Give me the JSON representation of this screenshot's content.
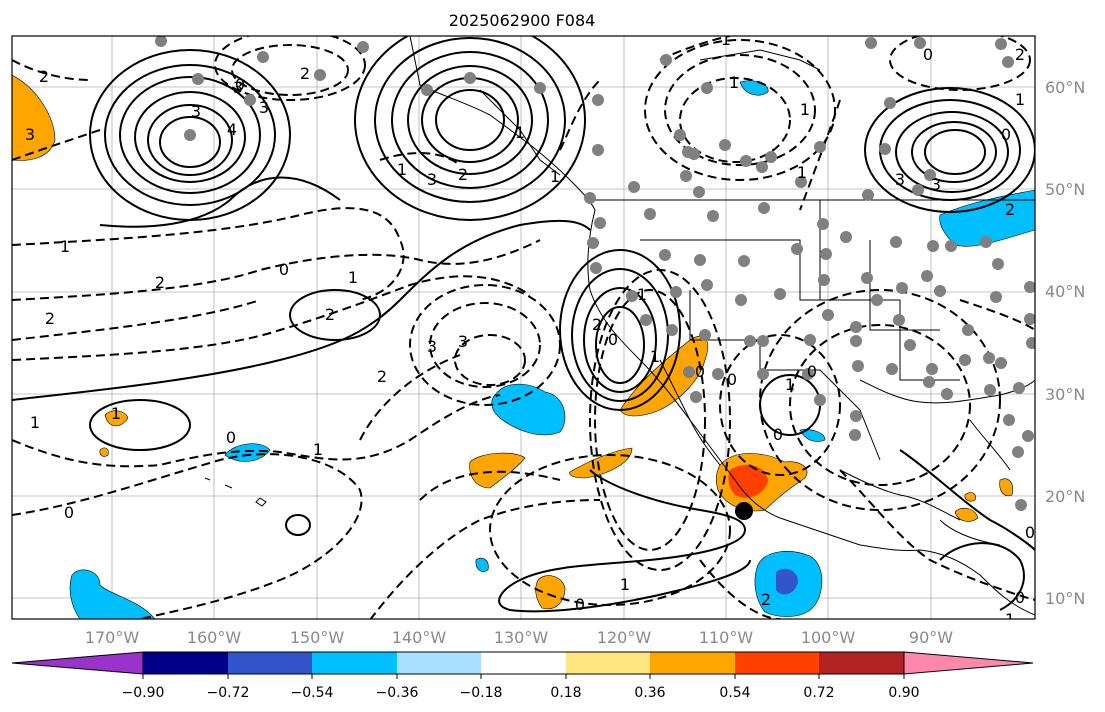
{
  "title": "2025062900 F084",
  "map": {
    "lon_labels": [
      "170°W",
      "160°W",
      "150°W",
      "140°W",
      "130°W",
      "120°W",
      "110°W",
      "100°W",
      "90°W"
    ],
    "lat_labels": [
      "60°N",
      "50°N",
      "40°N",
      "30°N",
      "20°N",
      "10°N"
    ],
    "contour_labels": [
      "3",
      "4",
      "3",
      "2",
      "3",
      "1",
      "2",
      "3",
      "2",
      "1",
      "0",
      "2",
      "1",
      "0",
      "1",
      "2",
      "3",
      "3",
      "2",
      "1",
      "0",
      "0",
      "1",
      "0",
      "1",
      "0",
      "1",
      "1",
      "0",
      "2",
      "3",
      "3",
      "2",
      "0",
      "1",
      "3",
      "2",
      "1",
      "1",
      "0",
      "2",
      "1",
      "1",
      "0",
      "1",
      "0",
      "1",
      "2",
      "1",
      "0",
      "0",
      "1",
      "0"
    ],
    "colors": {
      "land": "#ffffff",
      "coast": "#000000",
      "grid": "#b0b0b0",
      "contour": "#000000",
      "station": "#808080",
      "marker": "#000000"
    }
  },
  "colorbar": {
    "labels": [
      "−0.90",
      "−0.72",
      "−0.54",
      "−0.36",
      "−0.18",
      "0.18",
      "0.36",
      "0.54",
      "0.72",
      "0.90"
    ],
    "colors": [
      "#9933cc",
      "#000088",
      "#3355cc",
      "#00bfff",
      "#aadfff",
      "#ffffff",
      "#ffe680",
      "#ffa500",
      "#ff4000",
      "#b22222",
      "#ff88aa"
    ]
  }
}
